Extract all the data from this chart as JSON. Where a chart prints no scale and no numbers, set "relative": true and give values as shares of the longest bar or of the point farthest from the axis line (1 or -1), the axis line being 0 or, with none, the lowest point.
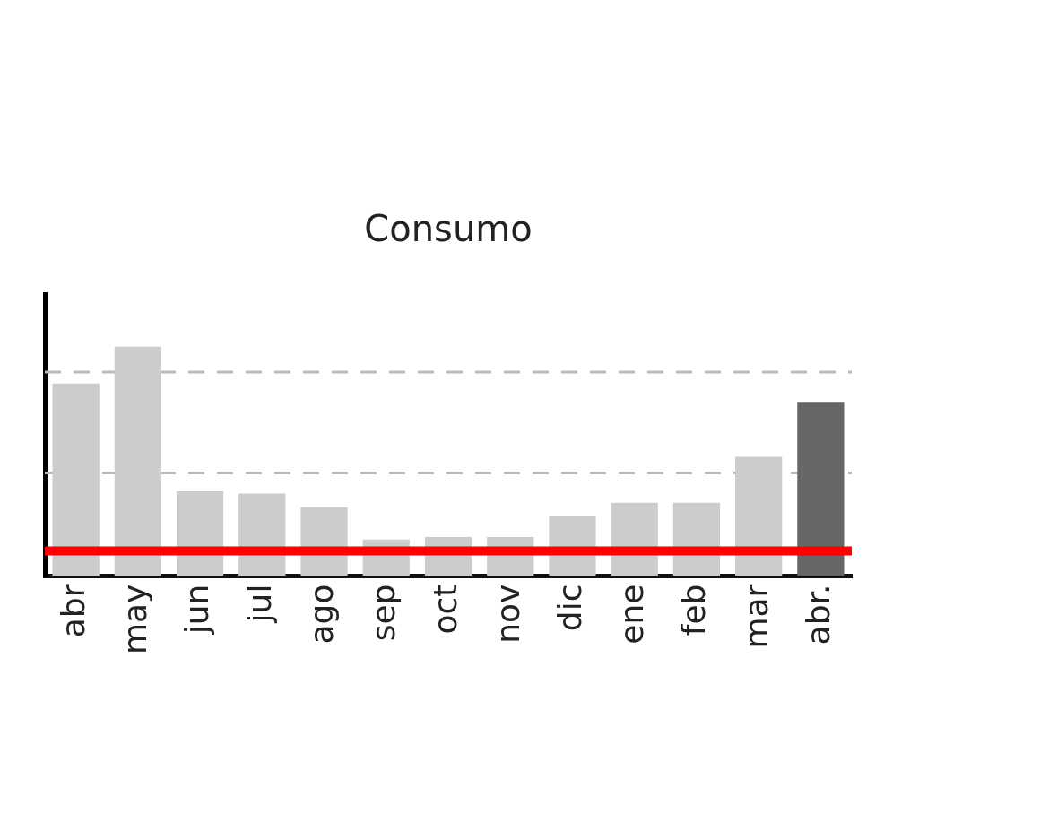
{
  "chart_data": {
    "type": "bar",
    "title": "Consumo",
    "relative": true,
    "categories": [
      "abr",
      "may",
      "jun",
      "jul",
      "ago",
      "sep",
      "oct",
      "nov",
      "dic",
      "ene",
      "feb",
      "mar",
      "abr."
    ],
    "values": [
      0.84,
      1,
      0.37,
      0.36,
      0.3,
      0.16,
      0.17,
      0.17,
      0.26,
      0.32,
      0.32,
      0.52,
      0.76
    ],
    "colors": [
      "#cccccc",
      "#cccccc",
      "#cccccc",
      "#cccccc",
      "#cccccc",
      "#cccccc",
      "#cccccc",
      "#cccccc",
      "#cccccc",
      "#cccccc",
      "#cccccc",
      "#cccccc",
      "#666666"
    ],
    "legend": false,
    "ref_lines": [
      {
        "axis": "y",
        "value": 0.89,
        "color": "#bbbbbb",
        "line_style": "dashed"
      },
      {
        "axis": "y",
        "value": 0.45,
        "color": "#bbbbbb",
        "line_style": "dashed"
      },
      {
        "axis": "y",
        "value": 0.11,
        "color": "#ff0000"
      }
    ]
  }
}
